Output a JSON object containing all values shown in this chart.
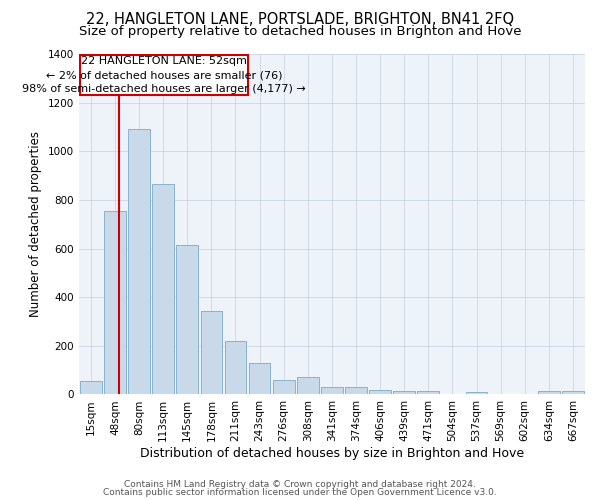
{
  "title": "22, HANGLETON LANE, PORTSLADE, BRIGHTON, BN41 2FQ",
  "subtitle": "Size of property relative to detached houses in Brighton and Hove",
  "xlabel": "Distribution of detached houses by size in Brighton and Hove",
  "ylabel": "Number of detached properties",
  "categories": [
    "15sqm",
    "48sqm",
    "80sqm",
    "113sqm",
    "145sqm",
    "178sqm",
    "211sqm",
    "243sqm",
    "276sqm",
    "308sqm",
    "341sqm",
    "374sqm",
    "406sqm",
    "439sqm",
    "471sqm",
    "504sqm",
    "537sqm",
    "569sqm",
    "602sqm",
    "634sqm",
    "667sqm"
  ],
  "values": [
    55,
    755,
    1090,
    865,
    615,
    345,
    220,
    130,
    60,
    70,
    30,
    30,
    20,
    15,
    15,
    0,
    12,
    0,
    0,
    13,
    13
  ],
  "bar_color": "#c8daea",
  "bar_edge_color": "#7aaac8",
  "red_line_color": "#cc0000",
  "red_line_x": 1.15,
  "annotation_text": "22 HANGLETON LANE: 52sqm\n← 2% of detached houses are smaller (76)\n98% of semi-detached houses are larger (4,177) →",
  "annotation_box_color": "#ffffff",
  "annotation_box_edge": "#cc0000",
  "ylim": [
    0,
    1400
  ],
  "yticks": [
    0,
    200,
    400,
    600,
    800,
    1000,
    1200,
    1400
  ],
  "plot_bg": "#eef3fa",
  "footer1": "Contains HM Land Registry data © Crown copyright and database right 2024.",
  "footer2": "Contains public sector information licensed under the Open Government Licence v3.0.",
  "title_fontsize": 10.5,
  "subtitle_fontsize": 9.5,
  "xlabel_fontsize": 9,
  "ylabel_fontsize": 8.5,
  "tick_fontsize": 7.5,
  "annotation_fontsize": 8,
  "footer_fontsize": 6.5
}
